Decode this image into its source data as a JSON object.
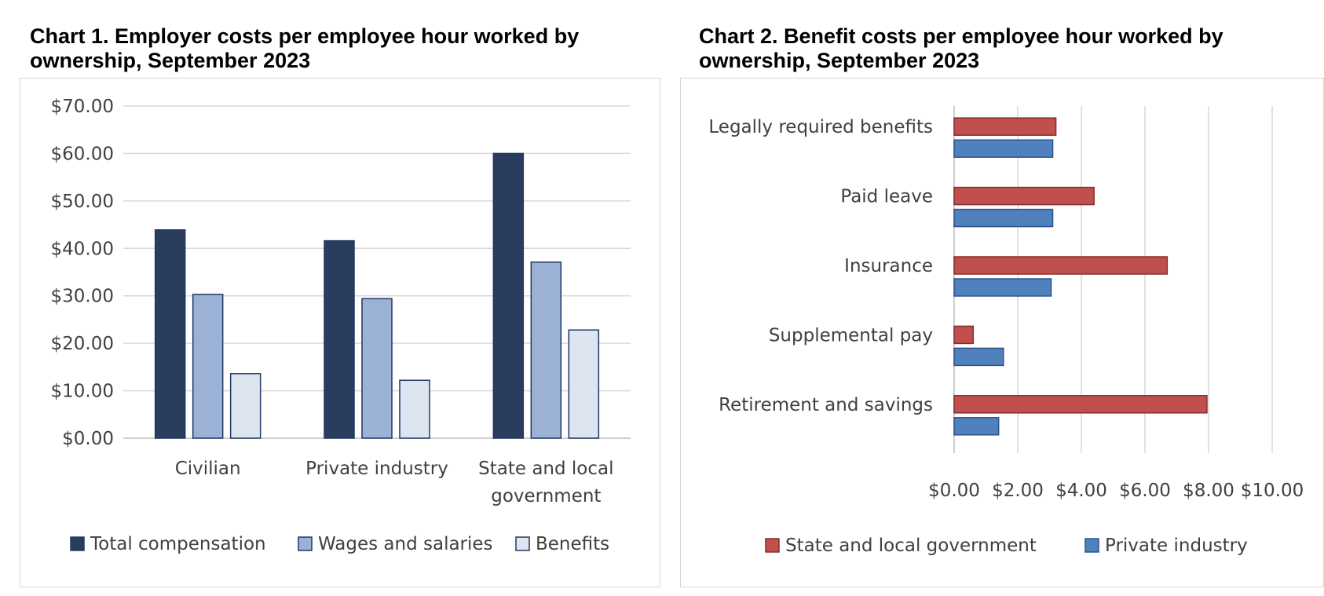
{
  "chart_data": [
    {
      "type": "bar",
      "title": "Chart 1. Employer costs per employee hour worked by ownership, September 2023",
      "categories": [
        [
          "Civilian"
        ],
        [
          "Private industry"
        ],
        [
          "State and local",
          "government"
        ]
      ],
      "series": [
        {
          "name": "Total compensation",
          "values": [
            43.9,
            41.6,
            60.0
          ],
          "color": "#2a3d5d"
        },
        {
          "name": "Wages and salaries",
          "values": [
            30.3,
            29.4,
            37.1
          ],
          "color": "#9bb1d5"
        },
        {
          "name": "Benefits",
          "values": [
            13.6,
            12.2,
            22.8
          ],
          "color": "#dde5f0"
        }
      ],
      "yticks": [
        "$0.00",
        "$10.00",
        "$20.00",
        "$30.00",
        "$40.00",
        "$50.00",
        "$60.00",
        "$70.00"
      ],
      "ylim": [
        0,
        70
      ],
      "grid": true,
      "legend": "bottom"
    },
    {
      "type": "bar",
      "orientation": "horizontal",
      "title": "Chart 2. Benefit costs per employee hour worked by ownership, September 2023",
      "categories": [
        "Legally required benefits",
        "Paid leave",
        "Insurance",
        "Supplemental pay",
        "Retirement and savings"
      ],
      "series": [
        {
          "name": "State and local government",
          "values": [
            3.2,
            4.4,
            6.7,
            0.6,
            7.95
          ],
          "color": "#c0504d"
        },
        {
          "name": "Private industry",
          "values": [
            3.1,
            3.1,
            3.05,
            1.55,
            1.4
          ],
          "color": "#4f81bd"
        }
      ],
      "xticks": [
        "$0.00",
        "$2.00",
        "$4.00",
        "$6.00",
        "$8.00",
        "$10.00"
      ],
      "xlim": [
        0,
        10
      ],
      "grid": true,
      "legend": "bottom"
    }
  ]
}
